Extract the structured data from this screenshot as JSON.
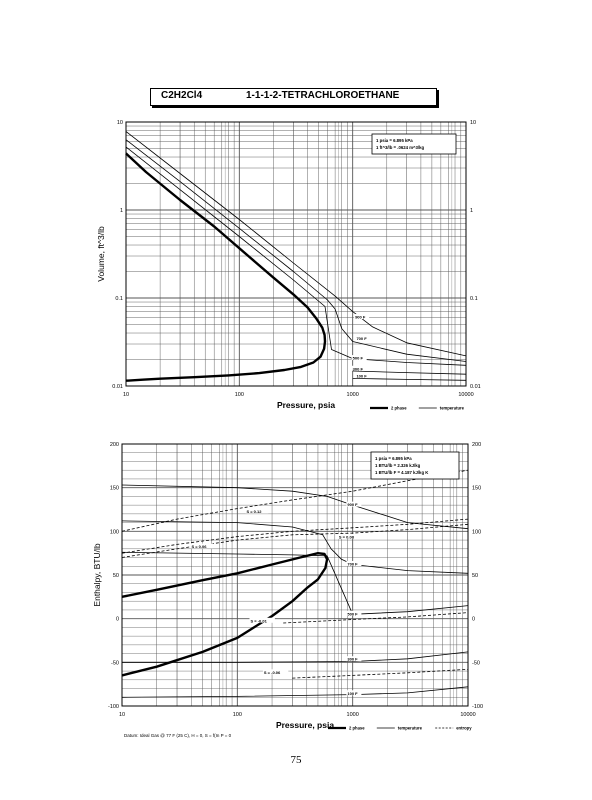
{
  "header": {
    "formula": "C2H2Cl4",
    "name": "1-1-1-2-TETRACHLOROETHANE"
  },
  "page_number": "75",
  "footer_note": "Datum: Ideal Gas @ 77 F (25 C), H = 0, S = f(In P = 0",
  "colors": {
    "ink": "#000000",
    "grid": "#555555",
    "paper": "#ffffff"
  },
  "chart_data": [
    {
      "type": "line",
      "title": "",
      "xlabel": "Pressure,  psia",
      "ylabel": "Volume, ft^3/lb",
      "xscale": "log",
      "yscale": "log",
      "xlim": [
        10,
        10000
      ],
      "ylim": [
        0.01,
        10
      ],
      "grid": true,
      "x_ticks": [
        "10",
        "100",
        "1000",
        "10000"
      ],
      "y_ticks": [
        "0.01",
        "0.1",
        "1",
        "10"
      ],
      "y_ticks_right": [
        "0.01",
        "0.1",
        "1",
        "10"
      ],
      "note_lines": [
        "1 psia = 6.895 kPa",
        "1 ft^3/lb = .0624 m^3/kg"
      ],
      "legend": [
        {
          "name": "2 phase",
          "style": "heavy"
        },
        {
          "name": "temperature",
          "style": "thin"
        }
      ],
      "series": [
        {
          "name": "2 phase",
          "style": "heavy",
          "x": [
            10,
            14,
            20,
            40,
            80,
            150,
            250,
            350,
            450,
            520,
            560,
            570,
            565,
            540,
            480,
            400,
            300,
            200,
            120,
            60,
            30,
            15,
            10
          ],
          "y": [
            0.0115,
            0.0118,
            0.0121,
            0.0126,
            0.0132,
            0.014,
            0.0152,
            0.0165,
            0.0185,
            0.0215,
            0.0265,
            0.032,
            0.038,
            0.046,
            0.058,
            0.078,
            0.11,
            0.17,
            0.3,
            0.65,
            1.3,
            2.7,
            4.4
          ]
        },
        {
          "name": "500 F",
          "style": "thin",
          "x": [
            10,
            30,
            100,
            300,
            570,
            650,
            1000,
            3000,
            10000
          ],
          "y": [
            5.2,
            1.7,
            0.5,
            0.16,
            0.08,
            0.026,
            0.0205,
            0.0185,
            0.0172
          ]
        },
        {
          "name": "700 F",
          "style": "thin",
          "x": [
            10,
            30,
            100,
            300,
            600,
            700,
            800,
            1000,
            3000,
            10000
          ],
          "y": [
            6.3,
            2.1,
            0.62,
            0.2,
            0.095,
            0.075,
            0.045,
            0.032,
            0.023,
            0.019
          ]
        },
        {
          "name": "900 F",
          "style": "thin",
          "x": [
            10,
            30,
            100,
            300,
            700,
            1000,
            1500,
            3000,
            10000
          ],
          "y": [
            7.8,
            2.6,
            0.78,
            0.25,
            0.105,
            0.07,
            0.047,
            0.031,
            0.022
          ]
        },
        {
          "name": "300 F",
          "style": "thin",
          "x": [
            1000,
            3000,
            10000
          ],
          "y": [
            0.0148,
            0.0142,
            0.0136
          ]
        },
        {
          "name": "100 F",
          "style": "thin",
          "x": [
            1000,
            3000,
            10000
          ],
          "y": [
            0.0122,
            0.0119,
            0.0116
          ]
        }
      ],
      "annotations": [
        {
          "text": "900 F",
          "x": 1050,
          "y": 0.06
        },
        {
          "text": "700 F",
          "x": 1080,
          "y": 0.034
        },
        {
          "text": "500 F",
          "x": 1000,
          "y": 0.0205
        },
        {
          "text": "300 F",
          "x": 1000,
          "y": 0.0155
        },
        {
          "text": "100 F",
          "x": 1080,
          "y": 0.0128
        }
      ]
    },
    {
      "type": "line",
      "title": "",
      "xlabel": "Pressure,  psia",
      "ylabel": "Enthalpy, BTU/lb",
      "xscale": "log",
      "yscale": "linear",
      "xlim": [
        10,
        10000
      ],
      "ylim": [
        -100,
        200
      ],
      "grid": true,
      "x_ticks": [
        "10",
        "100",
        "1000",
        "10000"
      ],
      "y_ticks": [
        "-100",
        "-50",
        "0",
        "50",
        "100",
        "150",
        "200"
      ],
      "y_ticks_right": [
        "-100",
        "-50",
        "0",
        "50",
        "100",
        "150",
        "200"
      ],
      "note_lines": [
        "1 psia = 6.895 kPa",
        "1 BTU/lb = 2.326 kJ/kg",
        "1 BTU/lb F = 4.187 kJ/kg K"
      ],
      "legend": [
        {
          "name": "2 phase",
          "style": "heavy"
        },
        {
          "name": "temperature",
          "style": "thin"
        },
        {
          "name": "entropy",
          "style": "dashed"
        }
      ],
      "series": [
        {
          "name": "2 phase",
          "style": "heavy",
          "x": [
            10,
            20,
            50,
            100,
            200,
            350,
            500,
            570,
            600,
            580,
            500,
            400,
            300,
            200,
            100,
            50,
            20,
            10
          ],
          "y": [
            25,
            33,
            44,
            52,
            62,
            70,
            75,
            74,
            68,
            58,
            45,
            35,
            20,
            3,
            -22,
            -38,
            -55,
            -65
          ]
        },
        {
          "name": "900 F",
          "style": "thin",
          "x": [
            10,
            100,
            300,
            600,
            1000,
            3000,
            10000
          ],
          "y": [
            153,
            150,
            146,
            140,
            130,
            110,
            103
          ]
        },
        {
          "name": "700 F",
          "style": "thin",
          "x": [
            10,
            100,
            300,
            550,
            650,
            800,
            1000,
            3000,
            10000
          ],
          "y": [
            112,
            110,
            105,
            96,
            80,
            68,
            62,
            55,
            52
          ]
        },
        {
          "name": "500 F",
          "style": "thin",
          "x": [
            10,
            100,
            300,
            600,
            1000,
            3000,
            10000
          ],
          "y": [
            76,
            74,
            73,
            72,
            5,
            8,
            15
          ]
        },
        {
          "name": "300 F",
          "style": "thin",
          "x": [
            10,
            100,
            1000,
            3000,
            10000
          ],
          "y": [
            -50,
            -50,
            -49,
            -46,
            -38
          ]
        },
        {
          "name": "100 F",
          "style": "thin",
          "x": [
            10,
            100,
            1000,
            3000,
            10000
          ],
          "y": [
            -90,
            -89,
            -87,
            -85,
            -78
          ]
        },
        {
          "name": "S = -0.01",
          "style": "dashed",
          "x": [
            250,
            500,
            1000,
            3000,
            10000
          ],
          "y": [
            -5,
            -3,
            -1,
            2,
            7
          ]
        },
        {
          "name": "S = -0.06",
          "style": "dashed",
          "x": [
            300,
            1000,
            3000,
            10000
          ],
          "y": [
            -68,
            -65,
            -62,
            -58
          ]
        },
        {
          "name": "S = 0.06",
          "style": "dashed",
          "x": [
            10,
            30,
            100,
            300,
            1000,
            3000,
            10000
          ],
          "y": [
            75,
            85,
            94,
            100,
            104,
            108,
            114
          ]
        },
        {
          "name": "S = 0.08",
          "style": "dashed",
          "x": [
            10,
            30,
            100,
            300,
            1000,
            3000,
            10000
          ],
          "y": [
            70,
            80,
            90,
            96,
            98,
            102,
            108
          ]
        },
        {
          "name": "S = 0.12",
          "style": "dashed",
          "x": [
            10,
            30,
            100,
            300,
            1000,
            3000,
            10000
          ],
          "y": [
            100,
            114,
            126,
            136,
            146,
            158,
            170
          ]
        }
      ],
      "annotations": [
        {
          "text": "900 F",
          "x": 900,
          "y": 130
        },
        {
          "text": "700 F",
          "x": 900,
          "y": 62
        },
        {
          "text": "500 F",
          "x": 900,
          "y": 5
        },
        {
          "text": "300 F",
          "x": 900,
          "y": -47
        },
        {
          "text": "100 F",
          "x": 900,
          "y": -86
        },
        {
          "text": "S = -0.01",
          "x": 130,
          "y": -3
        },
        {
          "text": "S = -0.06",
          "x": 170,
          "y": -62
        },
        {
          "text": "S = 0.08",
          "x": 760,
          "y": 93
        },
        {
          "text": "S = 0.06",
          "x": 40,
          "y": 82
        },
        {
          "text": "S = 0.12",
          "x": 120,
          "y": 122
        }
      ]
    }
  ]
}
